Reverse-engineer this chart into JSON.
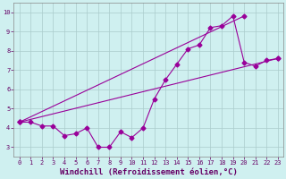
{
  "xlabel": "Windchill (Refroidissement éolien,°C)",
  "background_color": "#cff0f0",
  "grid_color": "#aacccc",
  "line_color": "#990099",
  "x_ticks": [
    0,
    1,
    2,
    3,
    4,
    5,
    6,
    7,
    8,
    9,
    10,
    11,
    12,
    13,
    14,
    15,
    16,
    17,
    18,
    19,
    20,
    21,
    22,
    23
  ],
  "y_ticks": [
    3,
    4,
    5,
    6,
    7,
    8,
    9,
    10
  ],
  "xlim": [
    -0.5,
    23.5
  ],
  "ylim": [
    2.5,
    10.5
  ],
  "line1_x": [
    0,
    1,
    2,
    3,
    4,
    5,
    6,
    7,
    8,
    9,
    10,
    11,
    12,
    13,
    14,
    15,
    16,
    17,
    18,
    19,
    20,
    21,
    22,
    23
  ],
  "line1_y": [
    4.3,
    4.3,
    4.1,
    4.1,
    3.6,
    3.7,
    4.0,
    3.0,
    3.0,
    3.8,
    3.5,
    4.0,
    5.5,
    6.5,
    7.3,
    8.1,
    8.3,
    9.2,
    9.3,
    9.8,
    7.4,
    7.2,
    7.5,
    7.6
  ],
  "line2_x": [
    0,
    20
  ],
  "line2_y": [
    4.3,
    9.8
  ],
  "line3_x": [
    0,
    23
  ],
  "line3_y": [
    4.3,
    7.6
  ],
  "marker_size": 2.5,
  "tick_fontsize": 5,
  "xlabel_fontsize": 6.5
}
